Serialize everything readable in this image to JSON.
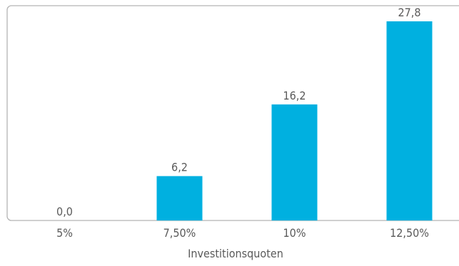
{
  "chart_data": {
    "type": "bar",
    "categories": [
      "5%",
      "7,50%",
      "10%",
      "12,50%"
    ],
    "values": [
      0.0,
      6.2,
      16.2,
      27.8
    ],
    "value_labels": [
      "0,0",
      "6,2",
      "16,2",
      "27,8"
    ],
    "title": "",
    "xlabel": "Investitionsquoten",
    "ylabel": "",
    "ylim": [
      0,
      27.8
    ],
    "grid": false,
    "legend": "none",
    "bar_color": "#00b0e0",
    "frame_color": "#b3b3b3",
    "text_color": "#5a5a5a"
  }
}
